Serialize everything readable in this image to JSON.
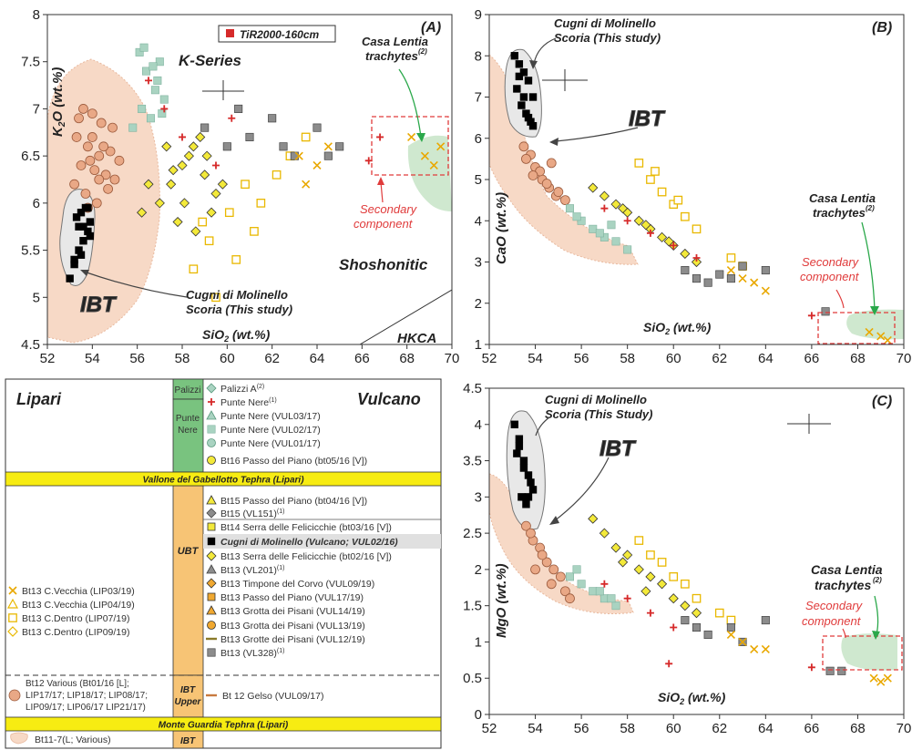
{
  "chart_data": [
    {
      "type": "scatter",
      "panel_label": "(A)",
      "xlabel": "SiO",
      "xlabel_sub": "2",
      "xlabel_tail": " (wt.%)",
      "ylabel": "K",
      "ylabel_sub": "2",
      "ylabel_tail": "O (wt.%)",
      "xlim": [
        52,
        70
      ],
      "ylim": [
        4.5,
        8
      ],
      "xticks": [
        "52",
        "54",
        "56",
        "58",
        "60",
        "62",
        "64",
        "66",
        "68",
        "70"
      ],
      "yticks": [
        "4.5",
        "5",
        "5.5",
        "6",
        "6.5",
        "7",
        "7.5",
        "8"
      ],
      "legend_label": "TiR2000-160cm",
      "annotations": {
        "kseries": "K-Series",
        "shoshonitic": "Shoshonitic",
        "hkca": "HKCA",
        "ibt": "IBT",
        "cugni_1": "Cugni di Molinello",
        "cugni_2": "Scoria (This study)",
        "casa_1": "Casa Lentia",
        "casa_2": "trachytes",
        "casa_sup": "(2)",
        "secondary_1": "Secondary",
        "secondary_2": "component"
      },
      "series": [
        {
          "key": "cugni",
          "x": [
            53.0,
            53.2,
            53.4,
            53.6,
            53.8,
            53.9,
            53.5,
            53.7,
            53.3,
            53.6,
            53.8,
            53.9,
            53.2,
            53.4,
            53.5
          ],
          "y": [
            5.2,
            5.4,
            5.5,
            5.6,
            5.7,
            5.8,
            5.9,
            5.95,
            5.85,
            5.75,
            5.95,
            5.65,
            5.35,
            5.75,
            5.45
          ]
        },
        {
          "key": "orange_circle",
          "x": [
            53.2,
            53.5,
            53.8,
            54.0,
            54.3,
            54.6,
            54.9,
            53.4,
            53.7,
            54.1,
            54.4,
            54.8,
            55.0,
            53.6,
            54.2,
            54.5,
            53.9,
            54.7,
            53.3,
            54.0,
            55.2,
            54.3,
            53.8
          ],
          "y": [
            6.2,
            6.4,
            6.6,
            6.7,
            6.5,
            6.3,
            6.8,
            6.9,
            6.1,
            6.35,
            6.85,
            6.55,
            6.25,
            7.0,
            6.0,
            6.6,
            6.45,
            6.15,
            6.7,
            6.95,
            6.45,
            6.25,
            5.95
          ]
        },
        {
          "key": "teal_square",
          "x": [
            56.1,
            56.4,
            56.8,
            57.0,
            56.2,
            56.6,
            57.2,
            55.8,
            56.9,
            56.3,
            56.7,
            57.1
          ],
          "y": [
            7.6,
            7.4,
            7.2,
            7.5,
            7.0,
            6.9,
            7.1,
            6.8,
            7.3,
            7.65,
            7.45,
            6.95
          ]
        },
        {
          "key": "yellow_diamond",
          "x": [
            57.0,
            57.5,
            58.0,
            58.5,
            59.0,
            59.5,
            57.8,
            58.3,
            58.8,
            59.3,
            56.5,
            57.3,
            58.1,
            58.6,
            59.1,
            59.8,
            56.2,
            57.6
          ],
          "y": [
            6.0,
            6.2,
            6.4,
            6.6,
            6.3,
            6.1,
            5.8,
            6.5,
            6.7,
            5.9,
            6.2,
            6.6,
            6.0,
            5.7,
            6.5,
            6.2,
            5.9,
            6.35
          ]
        },
        {
          "key": "yellow_square_open",
          "x": [
            58.5,
            59.2,
            60.1,
            60.8,
            61.5,
            62.2,
            59.5,
            60.4,
            61.2,
            62.8,
            63.5,
            58.9
          ],
          "y": [
            5.3,
            5.6,
            5.9,
            6.2,
            6.0,
            6.3,
            5.0,
            5.4,
            5.7,
            6.5,
            6.7,
            5.8
          ]
        },
        {
          "key": "gray_square",
          "x": [
            59.0,
            60.0,
            61.0,
            62.0,
            63.0,
            64.0,
            65.0,
            60.5,
            62.5,
            64.5
          ],
          "y": [
            6.8,
            6.6,
            6.7,
            6.9,
            6.5,
            6.8,
            6.6,
            7.0,
            6.6,
            6.5
          ]
        },
        {
          "key": "yellow_cross",
          "x": [
            63.5,
            64.0,
            64.5,
            68.2,
            68.8,
            69.2,
            69.5,
            63.2
          ],
          "y": [
            6.2,
            6.4,
            6.6,
            6.7,
            6.5,
            6.4,
            6.6,
            6.5
          ]
        },
        {
          "key": "red_cross",
          "x": [
            56.5,
            57.2,
            58.0,
            59.5,
            60.2,
            66.3,
            66.8
          ],
          "y": [
            7.3,
            7.0,
            6.7,
            6.4,
            6.9,
            6.45,
            6.7
          ]
        }
      ]
    },
    {
      "type": "scatter",
      "panel_label": "(B)",
      "xlabel": "SiO",
      "xlabel_sub": "2",
      "xlabel_tail": " (wt.%)",
      "ylabel": "CaO (wt.%)",
      "xlim": [
        52,
        70
      ],
      "ylim": [
        1,
        9
      ],
      "xticks": [
        "52",
        "54",
        "56",
        "58",
        "60",
        "62",
        "64",
        "66",
        "68",
        "70"
      ],
      "yticks": [
        "1",
        "2",
        "3",
        "4",
        "5",
        "6",
        "7",
        "8",
        "9"
      ],
      "annotations": {
        "ibt": "IBT",
        "cugni_1": "Cugni di Molinello",
        "cugni_2": "Scoria (This study)",
        "casa_1": "Casa Lentia",
        "casa_2": "trachytes",
        "casa_sup": "(2)",
        "secondary_1": "Secondary",
        "secondary_2": "component"
      },
      "series": [
        {
          "key": "cugni",
          "x": [
            53.1,
            53.3,
            53.5,
            53.7,
            53.9,
            53.4,
            53.6,
            53.8,
            53.2,
            53.5,
            53.7,
            53.9,
            53.3
          ],
          "y": [
            8.0,
            7.8,
            7.6,
            7.4,
            7.0,
            6.8,
            6.6,
            6.4,
            7.2,
            7.0,
            6.5,
            6.3,
            7.5
          ]
        },
        {
          "key": "orange_circle",
          "x": [
            53.5,
            53.8,
            54.0,
            54.3,
            54.6,
            54.9,
            53.6,
            54.2,
            54.5,
            55.0,
            55.3,
            53.9,
            54.7
          ],
          "y": [
            5.8,
            5.6,
            5.3,
            5.0,
            4.8,
            4.6,
            5.5,
            5.2,
            4.9,
            4.7,
            4.5,
            5.1,
            5.4
          ]
        },
        {
          "key": "teal_square",
          "x": [
            55.5,
            56.0,
            56.5,
            57.0,
            57.5,
            58.0,
            55.8,
            56.8,
            57.3
          ],
          "y": [
            4.3,
            4.0,
            3.8,
            3.6,
            3.5,
            3.3,
            4.1,
            3.7,
            3.9
          ]
        },
        {
          "key": "yellow_diamond",
          "x": [
            56.5,
            57.0,
            57.5,
            58.0,
            58.5,
            59.0,
            59.5,
            60.0,
            60.5,
            61.0,
            57.8,
            58.8,
            59.8
          ],
          "y": [
            4.8,
            4.6,
            4.4,
            4.2,
            4.0,
            3.8,
            3.6,
            3.4,
            3.2,
            3.0,
            4.3,
            3.9,
            3.5
          ]
        },
        {
          "key": "yellow_square_open",
          "x": [
            58.5,
            59.0,
            59.5,
            60.0,
            60.5,
            61.0,
            59.2,
            60.2,
            62.5,
            63.0
          ],
          "y": [
            5.4,
            5.0,
            4.7,
            4.4,
            4.1,
            3.8,
            5.2,
            4.5,
            3.1,
            2.9
          ]
        },
        {
          "key": "gray_square",
          "x": [
            60.5,
            61.0,
            61.5,
            62.0,
            62.5,
            63.0,
            64.0,
            66.6
          ],
          "y": [
            2.8,
            2.6,
            2.5,
            2.7,
            2.6,
            2.9,
            2.8,
            1.8
          ]
        },
        {
          "key": "yellow_cross",
          "x": [
            62.5,
            63.0,
            63.5,
            64.0,
            68.5,
            69.0,
            69.3
          ],
          "y": [
            2.8,
            2.6,
            2.5,
            2.3,
            1.3,
            1.2,
            1.1
          ]
        },
        {
          "key": "red_cross",
          "x": [
            57.0,
            58.0,
            59.0,
            60.0,
            61.0,
            66.0
          ],
          "y": [
            4.3,
            4.0,
            3.7,
            3.4,
            3.1,
            1.7
          ]
        }
      ]
    },
    {
      "type": "scatter",
      "panel_label": "(C)",
      "xlabel": "SiO",
      "xlabel_sub": "2",
      "xlabel_tail": " (wt.%)",
      "ylabel": "MgO (wt.%)",
      "xlim": [
        52,
        70
      ],
      "ylim": [
        0,
        4.5
      ],
      "xticks": [
        "52",
        "54",
        "56",
        "58",
        "60",
        "62",
        "64",
        "66",
        "68",
        "70"
      ],
      "yticks": [
        "0",
        "0.5",
        "1",
        "1.5",
        "2",
        "2.5",
        "3",
        "3.5",
        "4",
        "4.5"
      ],
      "annotations": {
        "ibt": "IBT",
        "cugni_1": "Cugni di Molinello",
        "cugni_2": "Scoria (This Study)",
        "casa_1": "Casa Lentia",
        "casa_2": "trachytes",
        "casa_sup": "(2)",
        "secondary_1": "Secondary",
        "secondary_2": "component"
      },
      "series": [
        {
          "key": "cugni",
          "x": [
            53.1,
            53.3,
            53.5,
            53.7,
            53.9,
            53.4,
            53.6,
            53.8,
            53.2,
            53.5,
            53.7,
            53.3
          ],
          "y": [
            4.0,
            3.8,
            3.5,
            3.3,
            3.1,
            3.0,
            2.9,
            3.2,
            3.6,
            3.4,
            3.0,
            3.7
          ]
        },
        {
          "key": "orange_circle",
          "x": [
            53.6,
            53.9,
            54.2,
            54.5,
            54.8,
            55.1,
            53.8,
            54.3,
            54.7,
            55.3,
            54.0,
            55.5
          ],
          "y": [
            2.6,
            2.4,
            2.3,
            2.1,
            2.0,
            1.9,
            2.5,
            2.2,
            1.8,
            1.7,
            2.0,
            1.6
          ]
        },
        {
          "key": "teal_square",
          "x": [
            55.5,
            56.0,
            56.5,
            57.0,
            57.5,
            55.8,
            56.8,
            57.3
          ],
          "y": [
            1.9,
            1.8,
            1.7,
            1.6,
            1.5,
            2.0,
            1.7,
            1.6
          ]
        },
        {
          "key": "yellow_diamond",
          "x": [
            56.5,
            57.0,
            57.5,
            58.0,
            58.5,
            59.0,
            59.5,
            60.0,
            60.5,
            61.0,
            57.8,
            58.8
          ],
          "y": [
            2.7,
            2.5,
            2.3,
            2.2,
            2.0,
            1.9,
            1.8,
            1.6,
            1.5,
            1.4,
            2.1,
            1.7
          ]
        },
        {
          "key": "yellow_square_open",
          "x": [
            58.5,
            59.0,
            59.5,
            60.0,
            60.5,
            61.0,
            62.0,
            62.5
          ],
          "y": [
            2.4,
            2.2,
            2.1,
            1.9,
            1.8,
            1.6,
            1.4,
            1.3
          ]
        },
        {
          "key": "gray_square",
          "x": [
            60.5,
            61.0,
            61.5,
            62.5,
            63.0,
            64.0,
            66.8,
            67.3
          ],
          "y": [
            1.3,
            1.2,
            1.1,
            1.2,
            1.0,
            1.3,
            0.6,
            0.6
          ]
        },
        {
          "key": "yellow_cross",
          "x": [
            62.5,
            63.0,
            63.5,
            64.0,
            68.7,
            69.0,
            69.3
          ],
          "y": [
            1.1,
            1.0,
            0.9,
            0.9,
            0.5,
            0.45,
            0.5
          ]
        },
        {
          "key": "red_cross",
          "x": [
            57.0,
            58.0,
            59.0,
            60.0,
            66.0,
            59.8
          ],
          "y": [
            1.8,
            1.6,
            1.4,
            1.2,
            0.65,
            0.7
          ]
        }
      ]
    }
  ],
  "legend": {
    "lipari_title": "Lipari",
    "vulcano_title": "Vulcano",
    "col_palizzi": "Palizzi",
    "col_punte": "Punte",
    "col_nere": "Nere",
    "col_ubt": "UBT",
    "col_ibt": "IBT",
    "col_upper": "Upper",
    "col_ibt2": "IBT",
    "band_vallone": "Vallone del Gabellotto Tephra (Lipari)",
    "band_monte": "Monte Guardia Tephra (Lipari)",
    "entries_top": [
      {
        "label": "Palizzi A",
        "sup": "(2)"
      },
      {
        "label": "Punte Nere",
        "sup": "(1)"
      },
      {
        "label": "Punte Nere (VUL03/17)",
        "sup": ""
      },
      {
        "label": "Punte Nere (VUL02/17)",
        "sup": ""
      },
      {
        "label": "Punte Nere (VUL01/17)",
        "sup": ""
      },
      {
        "label": "Bt16 Passo del Piano (bt05/16 [V])",
        "sup": ""
      }
    ],
    "entries_ubt": [
      {
        "label": "Bt15  Passo del Piano (bt04/16 [V])",
        "sup": ""
      },
      {
        "label": "Bt15 (VL151)",
        "sup": "(1)"
      },
      {
        "label": "Bt14 Serra delle Felicicchie (bt03/16 [V])",
        "sup": ""
      },
      {
        "label": "Cugni di Molinello (Vulcano; VUL02/16)",
        "sup": ""
      },
      {
        "label": "Bt13 Serra delle Felicicchie (bt02/16 [V])",
        "sup": ""
      },
      {
        "label": "Bt13 (VL201)",
        "sup": "(1)"
      },
      {
        "label": "Bt13 Timpone del Corvo (VUL09/19)",
        "sup": ""
      },
      {
        "label": "Bt13 Passo del Piano (VUL17/19)",
        "sup": ""
      },
      {
        "label": "Bt13 Grotta dei Pisani (VUL14/19)",
        "sup": ""
      },
      {
        "label": "Bt13 Grotta dei Pisani (VUL13/19)",
        "sup": ""
      },
      {
        "label": "Bt13 Grotte dei Pisani (VUL12/19)",
        "sup": ""
      },
      {
        "label": "Bt13 (VL328)",
        "sup": "(1)"
      }
    ],
    "entries_lipari": [
      "Bt13 C.Vecchia (LIP03/19)",
      "Bt13 C.Vecchia (LIP04/19)",
      "Bt13 C.Dentro (LIP07/19)",
      "Bt13 C.Dentro (LIP09/19)"
    ],
    "bt12_lines": [
      "Bt12 Various (Bt01/16 [L];",
      "LIP17/17; LIP18/17; LIP08/17;",
      "LIP09/17; LIP06/17 LIP21/17)"
    ],
    "bt12_gelso": "Bt 12 Gelso (VUL09/17)",
    "bt11": "Bt11-7(L; Various)"
  },
  "colors": {
    "ibt_fill": "#f7d9c6",
    "casa_fill": "#cfe8cf",
    "teal": "#a9d3c1",
    "yellow": "#f3e93a",
    "orange_circle": "#e9a886",
    "gray": "#8c8c8c",
    "red": "#d62a2a",
    "band_yellow": "#f7ec12",
    "col_green": "#79c37f",
    "col_orange": "#f7c475"
  }
}
